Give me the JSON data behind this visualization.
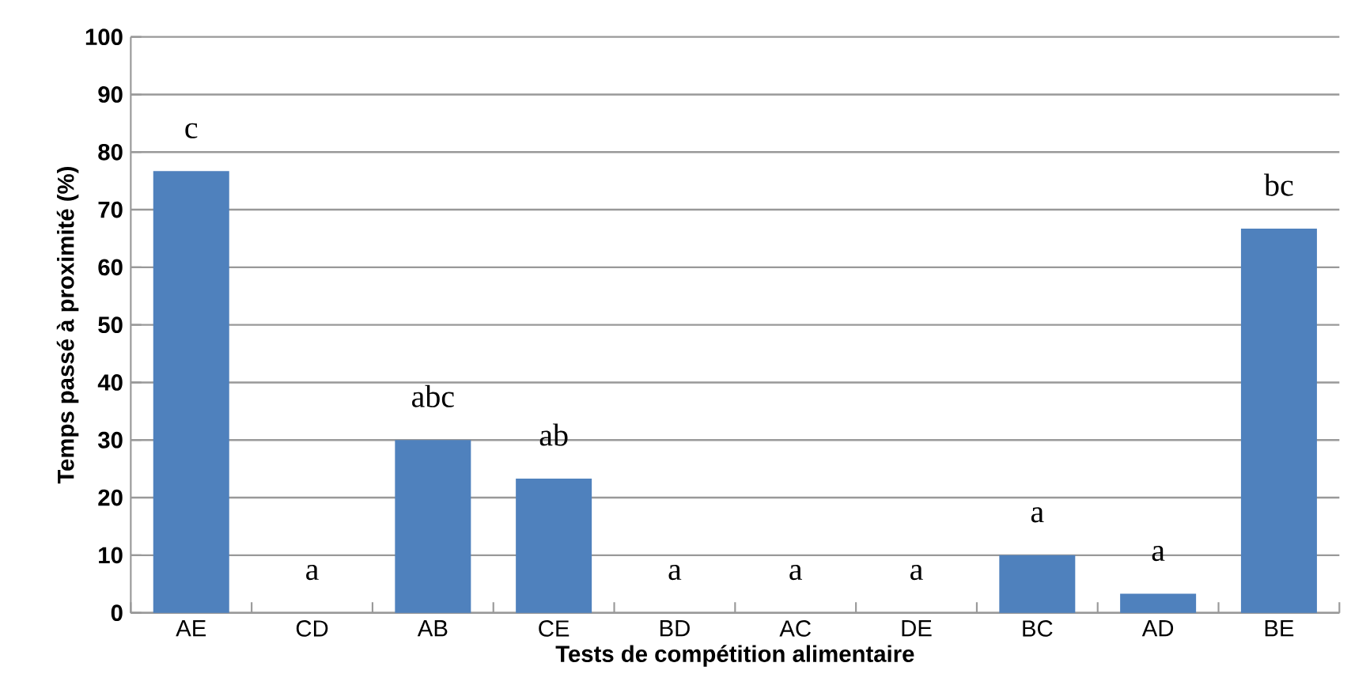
{
  "chart_data": {
    "type": "bar",
    "xlabel": "Tests de compétition alimentaire",
    "ylabel": "Temps passé  à proximité (%)",
    "categories": [
      "AE",
      "CD",
      "AB",
      "CE",
      "BD",
      "AC",
      "DE",
      "BC",
      "AD",
      "BE"
    ],
    "values": [
      76.7,
      0,
      30,
      23.3,
      0,
      0,
      0,
      10,
      3.3,
      66.7
    ],
    "color": "#4f81bd",
    "ylim": [
      0,
      100
    ],
    "yticks": [
      0,
      10,
      20,
      30,
      40,
      50,
      60,
      70,
      80,
      90,
      100
    ],
    "grid": "y",
    "annotations": [
      {
        "text": "c",
        "x": "AE",
        "y": 76.7
      },
      {
        "text": "a",
        "x": "CD",
        "y": 0
      },
      {
        "text": "abc",
        "x": "AB",
        "y": 30
      },
      {
        "text": "ab",
        "x": "CE",
        "y": 23.3
      },
      {
        "text": "a",
        "x": "BD",
        "y": 0
      },
      {
        "text": "a",
        "x": "AC",
        "y": 0
      },
      {
        "text": "a",
        "x": "DE",
        "y": 0
      },
      {
        "text": "a",
        "x": "BC",
        "y": 10
      },
      {
        "text": "a",
        "x": "AD",
        "y": 3.3
      },
      {
        "text": "bc",
        "x": "BE",
        "y": 66.7
      }
    ]
  }
}
